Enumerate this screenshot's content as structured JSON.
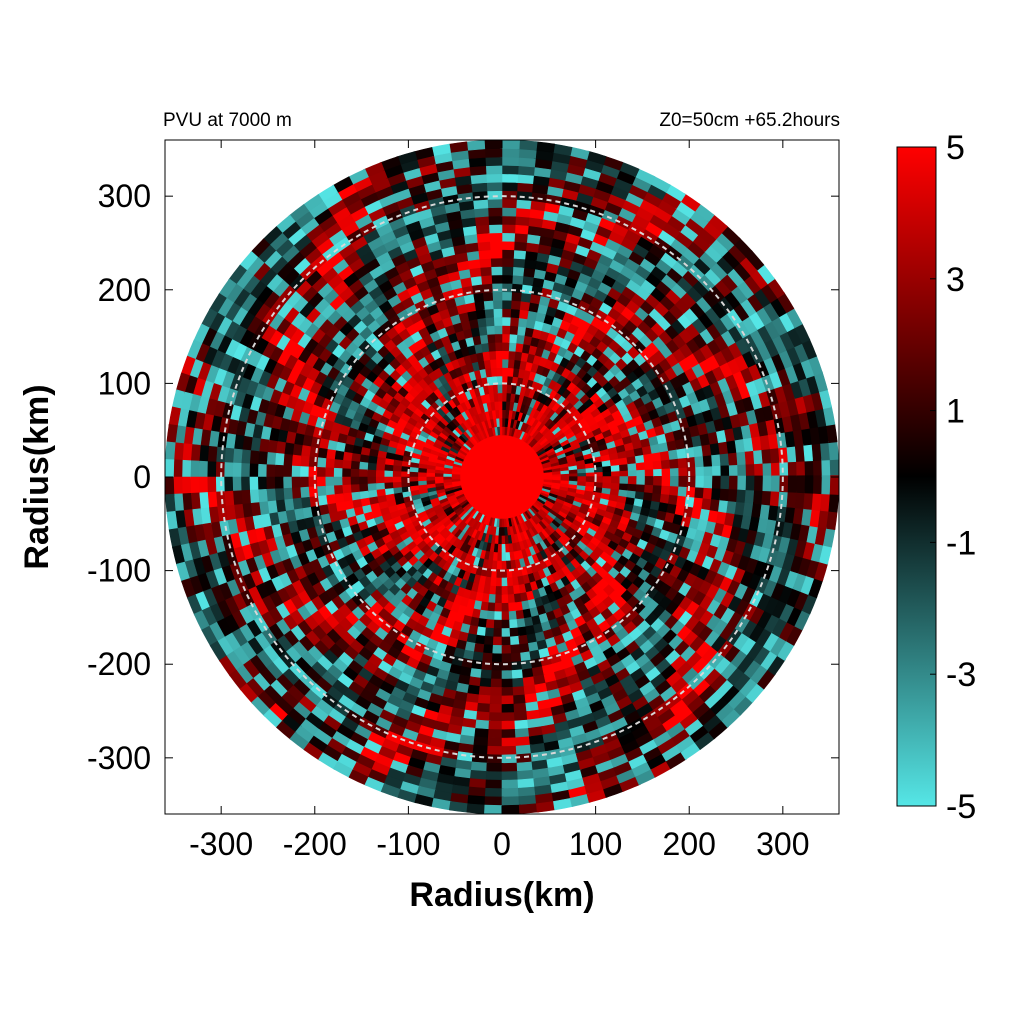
{
  "chart_data": {
    "type": "heatmap",
    "title_left": "PVU at  7000 m",
    "title_right": "Z0=50cm  +65.2hours",
    "xlabel": "Radius(km)",
    "ylabel": "Radius(km)",
    "xlim": [
      -360,
      360
    ],
    "ylim": [
      -360,
      360
    ],
    "x_ticks": [
      -300,
      -200,
      -100,
      0,
      100,
      200,
      300
    ],
    "y_ticks": [
      300,
      200,
      100,
      0,
      -100,
      -200,
      -300
    ],
    "domain_radius_km": 360,
    "reference_circles_km": [
      100,
      200,
      300
    ],
    "colorbar": {
      "min": -5,
      "max": 5,
      "ticks": [
        5,
        3,
        1,
        -1,
        -3,
        -5
      ],
      "colors": [
        "#55e6e6",
        "#000000",
        "#ff0000"
      ]
    },
    "field_description": {
      "core_radius_km": 50,
      "core_value": 5
    }
  }
}
